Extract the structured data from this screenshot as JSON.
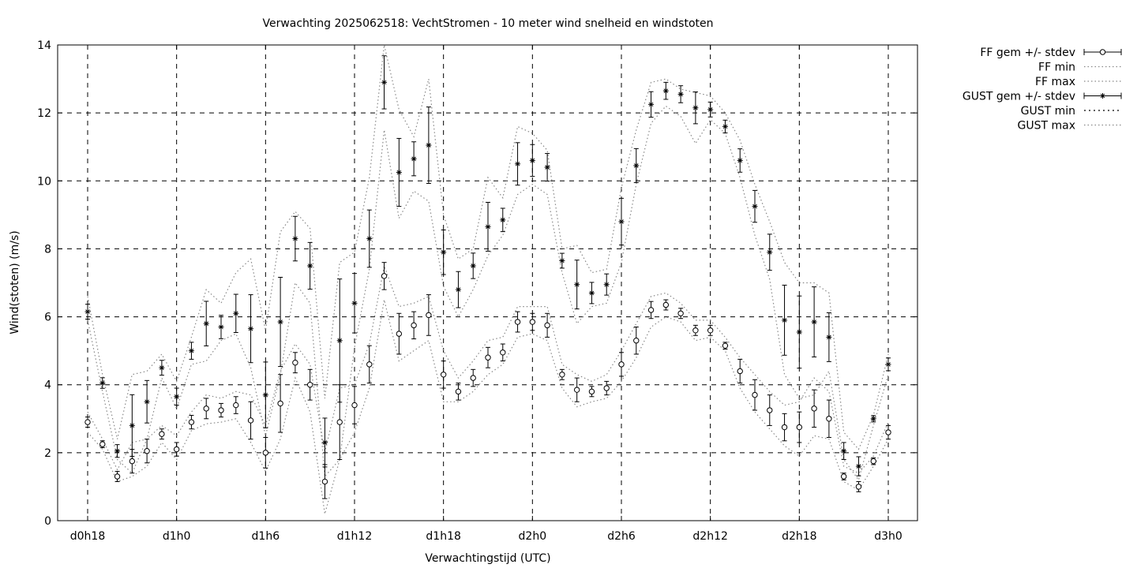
{
  "chart_data": {
    "type": "errorbar-line",
    "title": "Verwachting 2025062518: VechtStromen - 10 meter wind snelheid en windstoten",
    "xlabel": "Verwachtingstijd (UTC)",
    "ylabel": "Wind(stoten) (m/s)",
    "xlim": [
      18,
      72
    ],
    "ylim": [
      0,
      14
    ],
    "yticks": [
      0,
      2,
      4,
      6,
      8,
      10,
      12,
      14
    ],
    "xticks": [
      {
        "value": 18,
        "label": "d0h18"
      },
      {
        "value": 24,
        "label": "d1h0"
      },
      {
        "value": 30,
        "label": "d1h6"
      },
      {
        "value": 36,
        "label": "d1h12"
      },
      {
        "value": 42,
        "label": "d1h18"
      },
      {
        "value": 48,
        "label": "d2h0"
      },
      {
        "value": 54,
        "label": "d2h6"
      },
      {
        "value": 60,
        "label": "d2h12"
      },
      {
        "value": 66,
        "label": "d2h18"
      },
      {
        "value": 72,
        "label": "d3h0"
      }
    ],
    "grid": true,
    "legend_position": "outside-top-right",
    "x": [
      18,
      19,
      20,
      21,
      22,
      23,
      24,
      25,
      26,
      27,
      28,
      29,
      30,
      31,
      32,
      33,
      34,
      35,
      36,
      37,
      38,
      39,
      40,
      41,
      42,
      43,
      44,
      45,
      46,
      47,
      48,
      49,
      50,
      51,
      52,
      53,
      54,
      55,
      56,
      57,
      58,
      59,
      60,
      61,
      62,
      63,
      64,
      65,
      66,
      67,
      68,
      69,
      70,
      71,
      72
    ],
    "series": [
      {
        "name": "FF gem +/- stdev",
        "marker": "circle",
        "values": [
          2.9,
          2.25,
          1.3,
          1.75,
          2.05,
          2.55,
          2.1,
          2.9,
          3.3,
          3.25,
          3.4,
          2.95,
          2.0,
          3.45,
          4.65,
          4.0,
          1.15,
          2.9,
          3.4,
          4.6,
          7.2,
          5.5,
          5.75,
          6.05,
          4.3,
          3.8,
          4.2,
          4.8,
          4.95,
          5.85,
          5.85,
          5.75,
          4.3,
          3.85,
          3.8,
          3.9,
          4.6,
          5.3,
          6.2,
          6.35,
          6.1,
          5.6,
          5.6,
          5.15,
          4.4,
          3.7,
          3.25,
          2.75,
          2.75,
          3.3,
          3.0,
          1.3,
          1.0,
          1.75,
          2.6
        ],
        "stdev": [
          0.15,
          0.1,
          0.15,
          0.35,
          0.35,
          0.15,
          0.2,
          0.2,
          0.3,
          0.2,
          0.25,
          0.55,
          0.45,
          0.85,
          0.3,
          0.45,
          0.5,
          1.1,
          0.55,
          0.55,
          0.4,
          0.6,
          0.4,
          0.6,
          0.4,
          0.25,
          0.25,
          0.3,
          0.25,
          0.3,
          0.25,
          0.35,
          0.15,
          0.35,
          0.15,
          0.2,
          0.35,
          0.4,
          0.25,
          0.15,
          0.15,
          0.15,
          0.15,
          0.1,
          0.35,
          0.45,
          0.45,
          0.4,
          0.45,
          0.55,
          0.55,
          0.1,
          0.15,
          0.1,
          0.2
        ]
      },
      {
        "name": "FF min",
        "style": "dotted",
        "values": [
          2.6,
          2.1,
          1.15,
          1.3,
          1.6,
          2.3,
          1.8,
          2.65,
          2.85,
          2.9,
          3.0,
          2.3,
          1.45,
          2.4,
          4.2,
          3.2,
          0.2,
          1.8,
          2.6,
          3.9,
          6.5,
          4.7,
          5.0,
          5.3,
          3.5,
          3.5,
          3.8,
          4.3,
          4.6,
          5.4,
          5.5,
          5.3,
          3.9,
          3.35,
          3.5,
          3.6,
          4.1,
          4.8,
          5.7,
          6.0,
          5.85,
          5.3,
          5.4,
          5.0,
          3.9,
          3.2,
          2.7,
          2.2,
          1.9,
          2.5,
          2.4,
          1.15,
          0.9,
          1.6,
          2.4
        ]
      },
      {
        "name": "FF max",
        "style": "dotted",
        "values": [
          3.2,
          2.4,
          1.5,
          2.3,
          2.4,
          2.8,
          2.5,
          3.2,
          3.7,
          3.6,
          3.8,
          3.7,
          2.8,
          4.4,
          5.2,
          4.6,
          2.0,
          3.9,
          4.0,
          5.2,
          7.5,
          6.3,
          6.4,
          6.6,
          5.0,
          4.2,
          4.7,
          5.3,
          5.4,
          6.3,
          6.3,
          6.3,
          4.6,
          4.3,
          4.1,
          4.3,
          5.0,
          5.8,
          6.6,
          6.7,
          6.4,
          5.9,
          5.9,
          5.4,
          4.8,
          4.3,
          3.8,
          3.4,
          3.5,
          4.2,
          3.8,
          1.6,
          1.4,
          1.9,
          2.9
        ]
      },
      {
        "name": "GUST gem +/- stdev",
        "marker": "star",
        "values": [
          6.15,
          4.05,
          2.05,
          2.8,
          3.5,
          4.5,
          3.65,
          5.0,
          5.8,
          5.7,
          6.1,
          5.65,
          3.7,
          5.85,
          8.3,
          7.5,
          2.3,
          5.3,
          6.4,
          8.3,
          12.9,
          10.25,
          10.65,
          11.05,
          7.9,
          6.8,
          7.5,
          8.65,
          8.85,
          10.5,
          10.6,
          10.4,
          7.65,
          6.95,
          6.7,
          6.95,
          8.8,
          10.45,
          12.25,
          12.65,
          12.55,
          12.15,
          12.1,
          11.6,
          10.6,
          9.25,
          7.9,
          5.9,
          5.55,
          5.85,
          5.4,
          2.05,
          1.6,
          3.0,
          4.6
        ]
      },
      {
        "name": "GUST min",
        "style": "dotted",
        "values": [
          5.9,
          3.8,
          1.8,
          1.4,
          2.4,
          4.2,
          3.3,
          4.6,
          4.7,
          5.3,
          5.5,
          4.5,
          2.5,
          4.3,
          7.0,
          6.4,
          1.3,
          1.8,
          5.1,
          7.4,
          11.5,
          8.9,
          9.7,
          9.4,
          6.9,
          6.0,
          6.8,
          7.8,
          8.4,
          9.6,
          9.9,
          9.6,
          7.3,
          5.8,
          6.3,
          6.4,
          7.6,
          9.9,
          11.7,
          12.2,
          11.9,
          11.1,
          11.8,
          11.4,
          10.1,
          8.4,
          7.1,
          4.3,
          3.6,
          3.7,
          4.4,
          1.8,
          1.2,
          2.8,
          4.3
        ]
      },
      {
        "name": "GUST max",
        "style": "dotted",
        "values": [
          6.6,
          4.3,
          2.4,
          4.3,
          4.4,
          4.9,
          4.1,
          5.4,
          6.8,
          6.4,
          7.3,
          7.7,
          5.6,
          8.5,
          9.1,
          8.6,
          3.6,
          7.6,
          7.9,
          10.1,
          14.0,
          12.1,
          11.3,
          13.0,
          9.0,
          7.7,
          8.0,
          10.1,
          9.5,
          11.6,
          11.4,
          10.9,
          8.0,
          8.1,
          7.3,
          7.4,
          9.8,
          11.5,
          12.9,
          13.0,
          12.7,
          12.6,
          12.5,
          12.0,
          11.2,
          9.9,
          8.8,
          7.6,
          7.0,
          7.0,
          6.7,
          2.6,
          2.1,
          3.1,
          4.9
        ]
      }
    ]
  }
}
